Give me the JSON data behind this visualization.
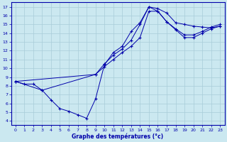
{
  "xlabel": "Graphe des températures (°c)",
  "bg_color": "#cbe8f0",
  "line_color": "#0000aa",
  "grid_color": "#a8ccd8",
  "xlim": [
    -0.5,
    23.5
  ],
  "ylim": [
    3.5,
    17.5
  ],
  "xticks": [
    0,
    1,
    2,
    3,
    4,
    5,
    6,
    7,
    8,
    9,
    10,
    11,
    12,
    13,
    14,
    15,
    16,
    17,
    18,
    19,
    20,
    21,
    22,
    23
  ],
  "yticks": [
    4,
    5,
    6,
    7,
    8,
    9,
    10,
    11,
    12,
    13,
    14,
    15,
    16,
    17
  ],
  "line1_x": [
    0,
    1,
    2,
    3,
    4,
    5,
    6,
    7,
    8,
    9,
    10,
    11,
    12,
    13,
    14,
    15,
    16,
    17,
    18,
    19,
    20,
    21,
    22,
    23
  ],
  "line1_y": [
    8.5,
    8.2,
    8.2,
    7.5,
    6.4,
    5.4,
    5.1,
    4.7,
    4.3,
    6.5,
    10.4,
    11.8,
    12.5,
    14.2,
    15.2,
    17.0,
    16.8,
    16.3,
    15.2,
    15.0,
    14.8,
    14.7,
    14.6,
    14.8
  ],
  "line2_x": [
    0,
    3,
    9,
    10,
    11,
    12,
    13,
    14,
    15,
    16,
    17,
    18,
    19,
    20,
    21,
    22,
    23
  ],
  "line2_y": [
    8.5,
    7.5,
    9.3,
    10.2,
    11.0,
    11.8,
    12.5,
    13.5,
    16.5,
    16.5,
    15.3,
    14.4,
    13.5,
    13.5,
    14.0,
    14.5,
    14.8
  ],
  "line3_x": [
    0,
    9,
    10,
    11,
    12,
    13,
    14,
    15,
    16,
    17,
    18,
    19,
    20,
    21,
    22,
    23
  ],
  "line3_y": [
    8.5,
    9.3,
    10.5,
    11.5,
    12.2,
    13.2,
    15.0,
    17.0,
    16.5,
    15.3,
    14.5,
    13.8,
    13.8,
    14.2,
    14.7,
    15.0
  ]
}
